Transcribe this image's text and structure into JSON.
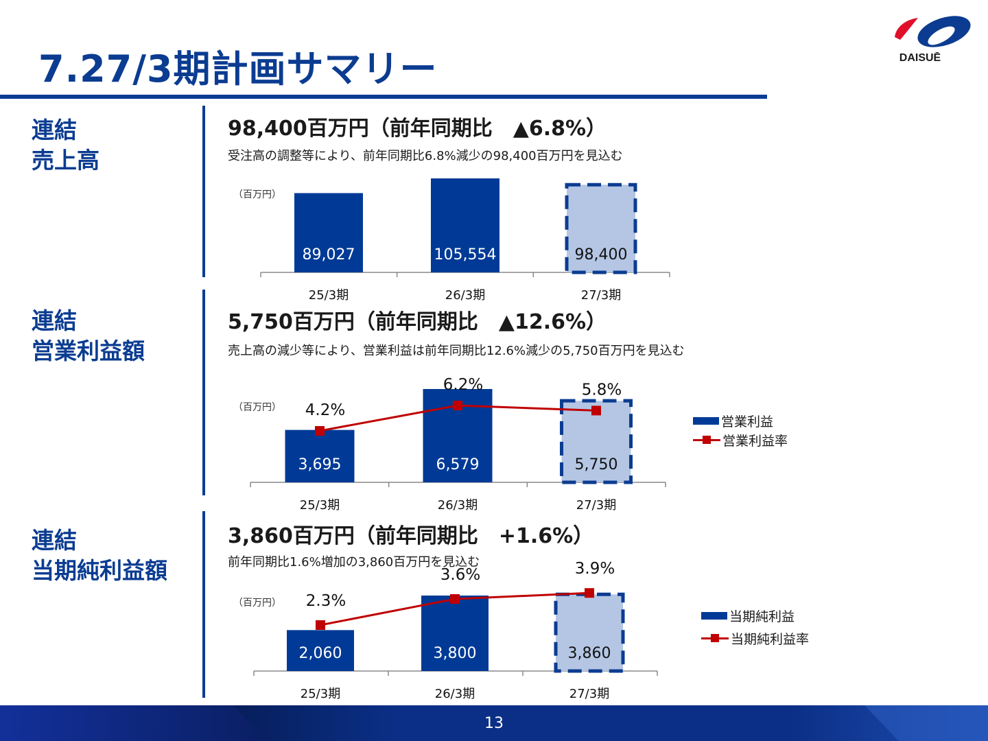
{
  "page": {
    "title": "7.27/3期計画サマリー",
    "page_number": "13"
  },
  "logo": {
    "text": "DAISUĒ"
  },
  "colors": {
    "brand": "#0b3c91",
    "bar": "#003a96",
    "plan_fill": "#b4c6e4",
    "plan_border": "#0b3c91",
    "line": "#c00000"
  },
  "sections": {
    "sales": {
      "label_1": "連結",
      "label_2": "売上高",
      "headline": "98,400百万円（前年同期比　▲6.8%）",
      "description": "受注高の調整等により、前年同期比6.8%減少の98,400百万円を見込む"
    },
    "operating": {
      "label_1": "連結",
      "label_2": "営業利益額",
      "headline": "5,750百万円（前年同期比　▲12.6%）",
      "description": "売上高の減少等により、営業利益は前年同期比12.6%減少の5,750百万円を見込む"
    },
    "net": {
      "label_1": "連結",
      "label_2": "当期純利益額",
      "headline": "3,860百万円（前年同期比　+1.6%）",
      "description": "前年同期比1.6%増加の3,860百万円を見込む"
    }
  },
  "chart_data": [
    {
      "type": "bar",
      "unit_label": "（百万円）",
      "categories": [
        "25/3期",
        "26/3期",
        "27/3期"
      ],
      "values": [
        89027,
        105554,
        98400
      ],
      "value_labels": [
        "89,027",
        "105,554",
        "98,400"
      ],
      "plan_index": 2
    },
    {
      "type": "bar",
      "unit_label": "（百万円）",
      "categories": [
        "25/3期",
        "26/3期",
        "27/3期"
      ],
      "series": [
        {
          "name": "営業利益",
          "kind": "bar",
          "values": [
            3695,
            6579,
            5750
          ],
          "labels": [
            "3,695",
            "6,579",
            "5,750"
          ]
        },
        {
          "name": "営業利益率",
          "kind": "line",
          "values": [
            4.2,
            6.2,
            5.8
          ],
          "labels": [
            "4.2%",
            "6.2%",
            "5.8%"
          ]
        }
      ],
      "plan_index": 2,
      "legend": "right"
    },
    {
      "type": "bar",
      "unit_label": "（百万円）",
      "categories": [
        "25/3期",
        "26/3期",
        "27/3期"
      ],
      "series": [
        {
          "name": "当期純利益",
          "kind": "bar",
          "values": [
            2060,
            3800,
            3860
          ],
          "labels": [
            "2,060",
            "3,800",
            "3,860"
          ]
        },
        {
          "name": "当期純利益率",
          "kind": "line",
          "values": [
            2.3,
            3.6,
            3.9
          ],
          "labels": [
            "2.3%",
            "3.6%",
            "3.9%"
          ]
        }
      ],
      "plan_index": 2,
      "legend": "right"
    }
  ]
}
